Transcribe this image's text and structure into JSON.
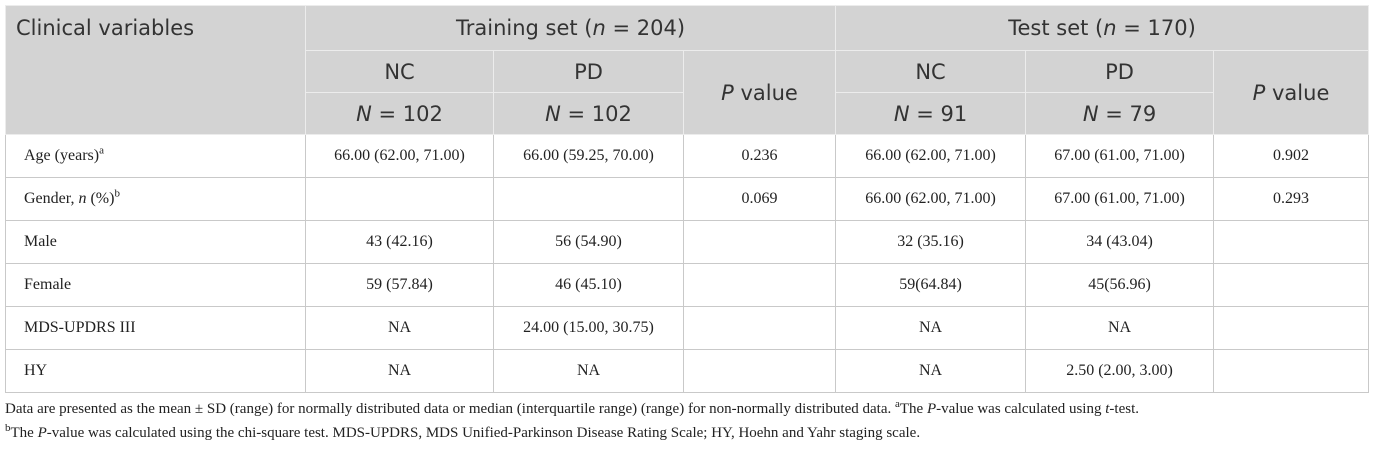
{
  "table": {
    "header": {
      "first": "Clinical variables",
      "groups": [
        [
          "Training set (",
          {
            "i": "n"
          },
          " = 204)"
        ],
        [
          "Test set (",
          {
            "i": "n"
          },
          " = 170)"
        ]
      ],
      "subgroups": [
        {
          "name": "NC",
          "n": [
            {
              "i": "N"
            },
            " = 102"
          ]
        },
        {
          "name": "PD",
          "n": [
            {
              "i": "N"
            },
            " = 102"
          ]
        },
        {
          "name": "NC",
          "n": [
            {
              "i": "N"
            },
            " = 91"
          ]
        },
        {
          "name": "PD",
          "n": [
            {
              "i": "N"
            },
            " = 79"
          ]
        }
      ],
      "p_value": [
        [
          {
            "i": "P"
          },
          " value"
        ],
        [
          {
            "i": "P"
          },
          " value"
        ]
      ]
    },
    "rows": [
      {
        "label": [
          "Age (years)",
          {
            "sup": "a"
          }
        ],
        "cells": [
          "66.00 (62.00, 71.00)",
          "66.00 (59.25, 70.00)",
          "0.236",
          "66.00 (62.00, 71.00)",
          "67.00 (61.00, 71.00)",
          "0.902"
        ]
      },
      {
        "label": [
          "Gender, ",
          {
            "i": "n"
          },
          " (%)",
          {
            "sup": "b"
          }
        ],
        "cells": [
          null,
          null,
          "0.069",
          "66.00 (62.00, 71.00)",
          "67.00 (61.00, 71.00)",
          "0.293"
        ]
      },
      {
        "label": [
          "Male"
        ],
        "cells": [
          "43 (42.16)",
          "56 (54.90)",
          null,
          "32 (35.16)",
          "34 (43.04)",
          null
        ]
      },
      {
        "label": [
          "Female"
        ],
        "cells": [
          "59 (57.84)",
          "46 (45.10)",
          null,
          "59(64.84)",
          "45(56.96)",
          null
        ]
      },
      {
        "label": [
          "MDS-UPDRS III"
        ],
        "cells": [
          "NA",
          "24.00 (15.00, 30.75)",
          null,
          "NA",
          "NA",
          null
        ]
      },
      {
        "label": [
          "HY"
        ],
        "cells": [
          "NA",
          "NA",
          null,
          "NA",
          "2.50 (2.00, 3.00)",
          null
        ]
      }
    ]
  },
  "footnote": [
    [
      "Data are presented as the mean ± SD (range) for normally distributed data or median (interquartile range) (range) for non-normally distributed data. ",
      {
        "sup": "a"
      },
      "The ",
      {
        "i": "P"
      },
      "-value was calculated using ",
      {
        "i": "t"
      },
      "-test."
    ],
    [
      {
        "sup": "b"
      },
      "The ",
      {
        "i": "P"
      },
      "-value was calculated using the chi-square test. MDS-UPDRS, MDS Unified-Parkinson Disease Rating Scale; HY, Hoehn and Yahr staging scale."
    ]
  ]
}
